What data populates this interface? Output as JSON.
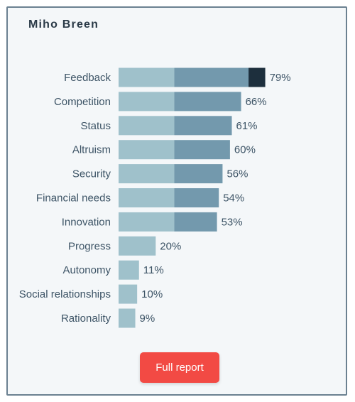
{
  "card": {
    "title": "Miho Breen"
  },
  "button": {
    "label": "Full report"
  },
  "colors": {
    "bar_light": "#9fc1cb",
    "bar_mid": "#7399ad",
    "bar_dark": "#1d2f3d",
    "button": "#f24a44",
    "text": "#3d5466"
  },
  "chart_data": {
    "type": "bar",
    "orientation": "horizontal",
    "categories": [
      "Feedback",
      "Competition",
      "Status",
      "Altruism",
      "Security",
      "Financial needs",
      "Innovation",
      "Progress",
      "Autonomy",
      "Social relationships",
      "Rationality"
    ],
    "values": [
      79,
      66,
      61,
      60,
      56,
      54,
      53,
      20,
      11,
      10,
      9
    ],
    "value_labels": [
      "79%",
      "66%",
      "61%",
      "60%",
      "56%",
      "54%",
      "53%",
      "20%",
      "11%",
      "10%",
      "9%"
    ],
    "xlim": [
      0,
      100
    ],
    "segment_breaks": [
      30,
      70
    ],
    "grid": false
  }
}
